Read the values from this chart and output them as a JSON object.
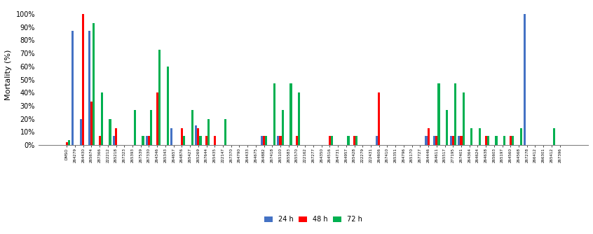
{
  "categories": [
    "DMSO",
    "264279",
    "264430",
    "265674",
    "287366",
    "222212",
    "265218",
    "267323",
    "265393",
    "267539",
    "267330",
    "264346",
    "265343",
    "264657",
    "264876",
    "265427",
    "265269",
    "267644",
    "265435",
    "222147",
    "267370",
    "264790",
    "264433",
    "264675",
    "264882",
    "267418",
    "265100",
    "265583",
    "265570",
    "222162",
    "267277",
    "264350",
    "264516",
    "264731",
    "264957",
    "265428",
    "222279",
    "222431",
    "264606",
    "267410",
    "265351",
    "264796",
    "265170",
    "267727",
    "264446",
    "264611",
    "265517",
    "277195",
    "267401",
    "264364",
    "264624",
    "264638",
    "265603",
    "265197",
    "264560",
    "264568",
    "267278",
    "266412",
    "266301",
    "265412",
    "267396"
  ],
  "data_24h": [
    0,
    87,
    20,
    87,
    0,
    0,
    7,
    0,
    0,
    0,
    7,
    0,
    0,
    13,
    0,
    0,
    15,
    0,
    0,
    0,
    0,
    0,
    0,
    0,
    7,
    0,
    7,
    0,
    0,
    0,
    0,
    0,
    0,
    0,
    0,
    0,
    0,
    0,
    7,
    0,
    0,
    0,
    0,
    0,
    7,
    7,
    0,
    7,
    7,
    0,
    0,
    0,
    0,
    0,
    0,
    0,
    100,
    0,
    0,
    0,
    0
  ],
  "data_48h": [
    2,
    0,
    100,
    33,
    7,
    0,
    13,
    0,
    0,
    0,
    7,
    40,
    0,
    0,
    13,
    0,
    13,
    7,
    7,
    0,
    0,
    0,
    0,
    0,
    7,
    0,
    7,
    0,
    7,
    0,
    0,
    0,
    7,
    0,
    0,
    7,
    0,
    0,
    40,
    0,
    0,
    0,
    0,
    0,
    13,
    7,
    0,
    7,
    7,
    0,
    0,
    7,
    0,
    0,
    7,
    0,
    0,
    0,
    0,
    0,
    0
  ],
  "data_72h": [
    4,
    0,
    0,
    93,
    40,
    20,
    0,
    0,
    27,
    7,
    27,
    73,
    60,
    0,
    7,
    27,
    7,
    20,
    0,
    20,
    0,
    0,
    0,
    0,
    7,
    47,
    27,
    47,
    40,
    0,
    0,
    0,
    7,
    0,
    7,
    7,
    0,
    0,
    0,
    0,
    0,
    0,
    0,
    0,
    0,
    47,
    27,
    47,
    40,
    13,
    13,
    7,
    7,
    7,
    7,
    13,
    0,
    0,
    0,
    13,
    0
  ],
  "color_24h": "#4472c4",
  "color_48h": "#ff0000",
  "color_72h": "#00b050",
  "ylabel": "Mortality (%)",
  "yticks": [
    0,
    10,
    20,
    30,
    40,
    50,
    60,
    70,
    80,
    90,
    100
  ],
  "ytick_labels": [
    "0%",
    "10%",
    "20%",
    "30%",
    "40%",
    "50%",
    "60%",
    "70%",
    "80%",
    "90%",
    "100%"
  ],
  "legend_labels": [
    "24 h",
    "48 h",
    "72 h"
  ],
  "bar_width": 0.27,
  "figsize": [
    8.46,
    3.34
  ],
  "dpi": 100
}
